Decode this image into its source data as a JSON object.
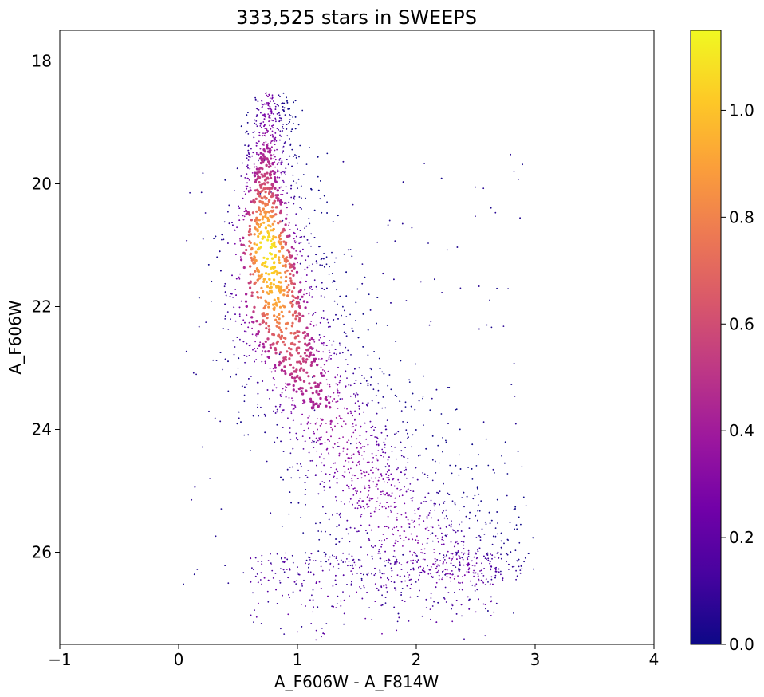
{
  "chart_data": {
    "type": "scatter",
    "title": "333,525 stars in SWEEPS",
    "xlabel": "A_F606W - A_F814W",
    "ylabel": "A_F606W",
    "xlim": [
      -1,
      4
    ],
    "ylim": [
      27.5,
      17.5
    ],
    "y_inverted": true,
    "grid": false,
    "x_ticks": [
      -1,
      0,
      1,
      2,
      3,
      4
    ],
    "x_tick_labels": [
      "−1",
      "0",
      "1",
      "2",
      "3",
      "4"
    ],
    "y_ticks": [
      18,
      20,
      22,
      24,
      26
    ],
    "y_tick_labels": [
      "18",
      "20",
      "22",
      "24",
      "26"
    ],
    "marker_color_by": "point density",
    "n_points": 333525,
    "density_ridge": {
      "description": "main sequence ridge of highest density",
      "x": [
        0.75,
        0.72,
        0.74,
        0.82,
        0.95,
        1.15,
        1.4,
        1.7,
        2.0,
        2.3
      ],
      "y": [
        19.0,
        20.0,
        21.0,
        22.0,
        22.8,
        23.5,
        24.3,
        25.2,
        25.9,
        26.3
      ],
      "density": [
        0.3,
        0.6,
        1.15,
        0.9,
        0.6,
        0.45,
        0.35,
        0.3,
        0.3,
        0.28
      ]
    },
    "colorbar": {
      "colormap": "plasma",
      "min": 0.0,
      "max": 1.15,
      "ticks": [
        0.0,
        0.2,
        0.4,
        0.6,
        0.8,
        1.0
      ],
      "tick_labels": [
        "0.0",
        "0.2",
        "0.4",
        "0.6",
        "0.8",
        "1.0"
      ],
      "colors": [
        "#0d0887",
        "#46039f",
        "#7201a8",
        "#9c179e",
        "#bd3786",
        "#d8576b",
        "#ed7953",
        "#fb9f3a",
        "#fdca26",
        "#f0f921"
      ]
    }
  }
}
